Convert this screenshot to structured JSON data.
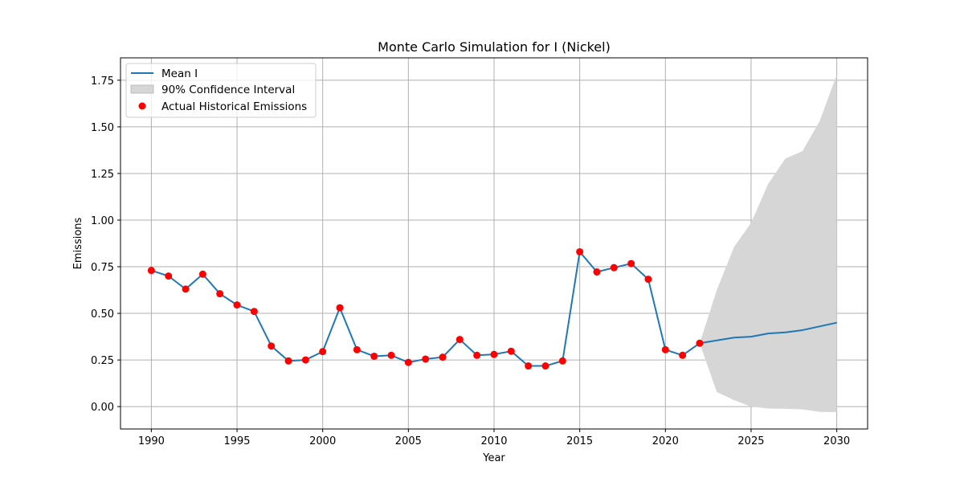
{
  "chart_data": {
    "type": "line",
    "title": "Monte Carlo Simulation for I (Nickel)",
    "xlabel": "Year",
    "ylabel": "Emissions",
    "xlim": [
      1988.2,
      2031.8
    ],
    "ylim": [
      -0.12,
      1.87
    ],
    "xticks": [
      1990,
      1995,
      2000,
      2005,
      2010,
      2015,
      2020,
      2025,
      2030
    ],
    "yticks": [
      0.0,
      0.25,
      0.5,
      0.75,
      1.0,
      1.25,
      1.5,
      1.75
    ],
    "ytick_labels": [
      "0.00",
      "0.25",
      "0.50",
      "0.75",
      "1.00",
      "1.25",
      "1.50",
      "1.75"
    ],
    "grid": true,
    "legend_position": "upper-left",
    "series": [
      {
        "name": "Mean I",
        "kind": "line",
        "color": "#1f77b4",
        "x": [
          1990,
          1991,
          1992,
          1993,
          1994,
          1995,
          1996,
          1997,
          1998,
          1999,
          2000,
          2001,
          2002,
          2003,
          2004,
          2005,
          2006,
          2007,
          2008,
          2009,
          2010,
          2011,
          2012,
          2013,
          2014,
          2015,
          2016,
          2017,
          2018,
          2019,
          2020,
          2021,
          2022,
          2023,
          2024,
          2025,
          2026,
          2027,
          2028,
          2029,
          2030
        ],
        "values": [
          0.73,
          0.7,
          0.63,
          0.71,
          0.605,
          0.545,
          0.51,
          0.325,
          0.245,
          0.25,
          0.295,
          0.53,
          0.305,
          0.27,
          0.275,
          0.237,
          0.255,
          0.265,
          0.36,
          0.275,
          0.28,
          0.297,
          0.218,
          0.218,
          0.245,
          0.83,
          0.722,
          0.745,
          0.767,
          0.683,
          0.305,
          0.275,
          0.34,
          0.355,
          0.37,
          0.375,
          0.392,
          0.398,
          0.41,
          0.43,
          0.45
        ]
      },
      {
        "name": "90% Confidence Interval",
        "kind": "band",
        "color": "#d6d6d6",
        "x": [
          2022,
          2023,
          2024,
          2025,
          2026,
          2027,
          2028,
          2029,
          2030
        ],
        "lower": [
          0.34,
          0.078,
          0.035,
          0.0,
          -0.01,
          -0.012,
          -0.015,
          -0.028,
          -0.03
        ],
        "upper": [
          0.34,
          0.625,
          0.855,
          0.985,
          1.195,
          1.33,
          1.37,
          1.53,
          1.78
        ]
      },
      {
        "name": "Actual Historical Emissions",
        "kind": "scatter",
        "color": "#ff0000",
        "x": [
          1990,
          1991,
          1992,
          1993,
          1994,
          1995,
          1996,
          1997,
          1998,
          1999,
          2000,
          2001,
          2002,
          2003,
          2004,
          2005,
          2006,
          2007,
          2008,
          2009,
          2010,
          2011,
          2012,
          2013,
          2014,
          2015,
          2016,
          2017,
          2018,
          2019,
          2020,
          2021,
          2022
        ],
        "values": [
          0.73,
          0.7,
          0.63,
          0.71,
          0.605,
          0.545,
          0.51,
          0.325,
          0.245,
          0.25,
          0.295,
          0.53,
          0.305,
          0.27,
          0.275,
          0.237,
          0.255,
          0.265,
          0.36,
          0.275,
          0.28,
          0.297,
          0.218,
          0.218,
          0.245,
          0.83,
          0.722,
          0.745,
          0.767,
          0.683,
          0.305,
          0.275,
          0.34
        ]
      }
    ]
  }
}
